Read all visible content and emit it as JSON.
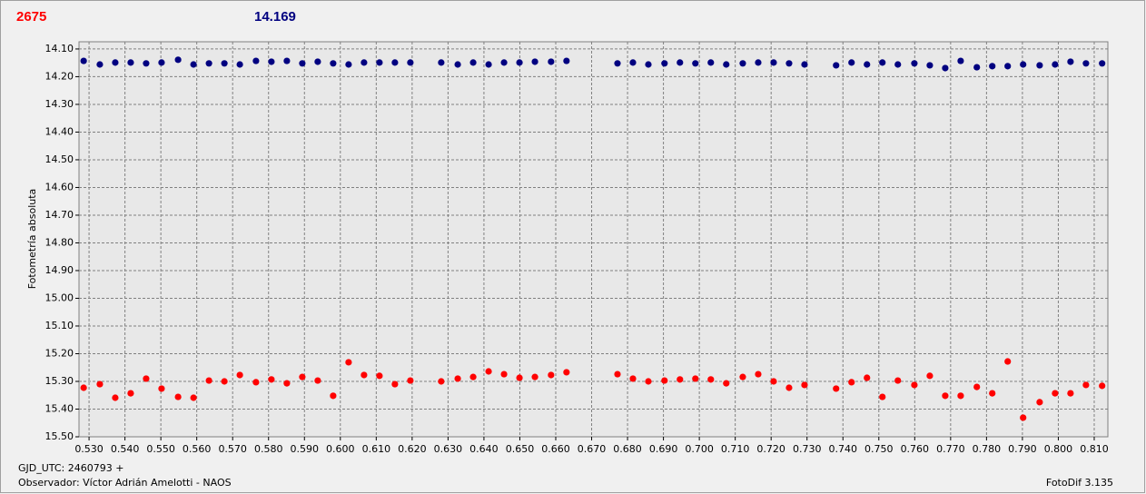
{
  "chart_data": {
    "type": "scatter",
    "label_left": "2675",
    "label_left_color": "#ff0000",
    "label_right": "14.169",
    "label_right_color": "#000080",
    "ylabel": "Fotometría absoluta",
    "xlabel": "GJD_UTC: 2460793 +",
    "observer": "Observador: Víctor Adrián Amelotti - NAOS",
    "software": "FotoDif 3.135",
    "y_inverted": true,
    "grid": true,
    "xlim": [
      0.5272,
      0.8138
    ],
    "ylim": [
      14.074,
      15.5
    ],
    "xticks": [
      {
        "value": 0.53,
        "label": "0.530"
      },
      {
        "value": 0.54,
        "label": "0.540"
      },
      {
        "value": 0.55,
        "label": "0.550"
      },
      {
        "value": 0.56,
        "label": "0.560"
      },
      {
        "value": 0.57,
        "label": "0.570"
      },
      {
        "value": 0.58,
        "label": "0.580"
      },
      {
        "value": 0.59,
        "label": "0.590"
      },
      {
        "value": 0.6,
        "label": "0.600"
      },
      {
        "value": 0.61,
        "label": "0.610"
      },
      {
        "value": 0.62,
        "label": "0.620"
      },
      {
        "value": 0.63,
        "label": "0.630"
      },
      {
        "value": 0.64,
        "label": "0.640"
      },
      {
        "value": 0.65,
        "label": "0.650"
      },
      {
        "value": 0.66,
        "label": "0.660"
      },
      {
        "value": 0.67,
        "label": "0.670"
      },
      {
        "value": 0.68,
        "label": "0.680"
      },
      {
        "value": 0.69,
        "label": "0.690"
      },
      {
        "value": 0.7,
        "label": "0.700"
      },
      {
        "value": 0.71,
        "label": "0.710"
      },
      {
        "value": 0.72,
        "label": "0.720"
      },
      {
        "value": 0.73,
        "label": "0.730"
      },
      {
        "value": 0.74,
        "label": "0.740"
      },
      {
        "value": 0.75,
        "label": "0.750"
      },
      {
        "value": 0.76,
        "label": "0.760"
      },
      {
        "value": 0.77,
        "label": "0.770"
      },
      {
        "value": 0.78,
        "label": "0.780"
      },
      {
        "value": 0.79,
        "label": "0.790"
      },
      {
        "value": 0.8,
        "label": "0.800"
      },
      {
        "value": 0.81,
        "label": "0.810"
      }
    ],
    "yticks": [
      {
        "value": 14.1,
        "label": "14.10"
      },
      {
        "value": 14.2,
        "label": "14.20"
      },
      {
        "value": 14.3,
        "label": "14.30"
      },
      {
        "value": 14.4,
        "label": "14.40"
      },
      {
        "value": 14.5,
        "label": "14.50"
      },
      {
        "value": 14.6,
        "label": "14.60"
      },
      {
        "value": 14.7,
        "label": "14.70"
      },
      {
        "value": 14.8,
        "label": "14.80"
      },
      {
        "value": 14.9,
        "label": "14.90"
      },
      {
        "value": 15.0,
        "label": "15.00"
      },
      {
        "value": 15.1,
        "label": "15.10"
      },
      {
        "value": 15.2,
        "label": "15.20"
      },
      {
        "value": 15.3,
        "label": "15.30"
      },
      {
        "value": 15.4,
        "label": "15.40"
      },
      {
        "value": 15.5,
        "label": "15.50"
      }
    ],
    "x": [
      0.5285,
      0.533,
      0.5373,
      0.5416,
      0.5459,
      0.5502,
      0.5548,
      0.5591,
      0.5634,
      0.5677,
      0.572,
      0.5765,
      0.5808,
      0.5851,
      0.5894,
      0.5937,
      0.598,
      0.6023,
      0.6066,
      0.6109,
      0.6152,
      0.6195,
      0.6281,
      0.6327,
      0.637,
      0.6413,
      0.6456,
      0.6499,
      0.6542,
      0.6587,
      0.663,
      0.6772,
      0.6815,
      0.6858,
      0.6903,
      0.6946,
      0.6989,
      0.7032,
      0.7075,
      0.7121,
      0.7164,
      0.7207,
      0.725,
      0.7293,
      0.7381,
      0.7424,
      0.7467,
      0.751,
      0.7553,
      0.7599,
      0.7642,
      0.7685,
      0.7728,
      0.7773,
      0.7816,
      0.7859,
      0.7902,
      0.7948,
      0.7991,
      0.8034,
      0.8077,
      0.8122
    ],
    "series": [
      {
        "color": "#000080",
        "values": [
          14.143,
          14.156,
          14.149,
          14.149,
          14.152,
          14.149,
          14.139,
          14.156,
          14.152,
          14.152,
          14.156,
          14.143,
          14.146,
          14.143,
          14.152,
          14.146,
          14.152,
          14.156,
          14.149,
          14.149,
          14.149,
          14.149,
          14.149,
          14.156,
          14.149,
          14.156,
          14.149,
          14.149,
          14.146,
          14.146,
          14.143,
          14.152,
          14.149,
          14.156,
          14.152,
          14.149,
          14.152,
          14.149,
          14.156,
          14.152,
          14.149,
          14.149,
          14.152,
          14.156,
          14.159,
          14.149,
          14.156,
          14.149,
          14.156,
          14.152,
          14.159,
          14.169,
          14.143,
          14.166,
          14.162,
          14.162,
          14.156,
          14.159,
          14.156,
          14.146,
          14.152,
          14.152
        ]
      },
      {
        "color": "#ff0000",
        "values": [
          15.323,
          15.31,
          15.359,
          15.343,
          15.29,
          15.326,
          15.356,
          15.359,
          15.297,
          15.3,
          15.277,
          15.303,
          15.293,
          15.307,
          15.284,
          15.297,
          15.352,
          15.231,
          15.277,
          15.28,
          15.31,
          15.297,
          15.3,
          15.29,
          15.284,
          15.264,
          15.274,
          15.287,
          15.284,
          15.277,
          15.267,
          15.274,
          15.29,
          15.3,
          15.297,
          15.293,
          15.29,
          15.293,
          15.307,
          15.284,
          15.274,
          15.3,
          15.323,
          15.313,
          15.326,
          15.303,
          15.287,
          15.356,
          15.297,
          15.313,
          15.28,
          15.352,
          15.352,
          15.32,
          15.343,
          15.228,
          15.431,
          15.375,
          15.343,
          15.343,
          15.313,
          15.316
        ]
      }
    ]
  }
}
